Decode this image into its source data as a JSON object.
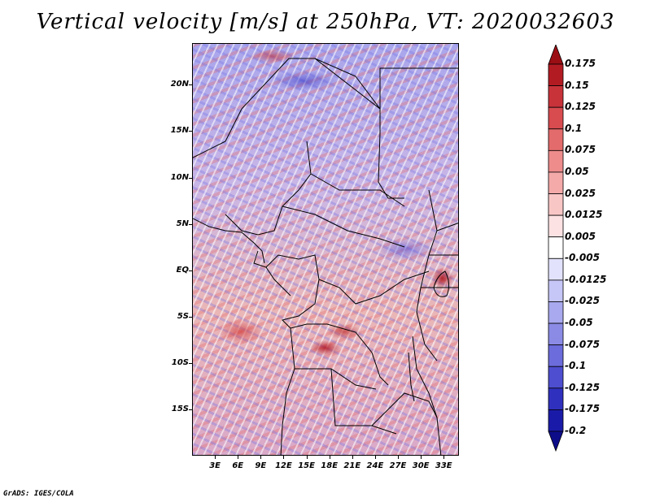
{
  "title": "Vertical velocity [m/s] at 250hPa, VT: 2020032603",
  "credit": "GrADS: IGES/COLA",
  "map": {
    "lat_labels": [
      "20N",
      "15N",
      "10N",
      "5N",
      "EQ",
      "5S",
      "10S",
      "15S"
    ],
    "lon_labels": [
      "3E",
      "6E",
      "9E",
      "12E",
      "15E",
      "18E",
      "21E",
      "24E",
      "27E",
      "30E",
      "33E"
    ],
    "lat_values": [
      20,
      15,
      10,
      5,
      0,
      -5,
      -10,
      -15
    ],
    "lon_values": [
      3,
      6,
      9,
      12,
      15,
      18,
      21,
      24,
      27,
      30,
      33
    ],
    "lat_range": [
      -20,
      24.5
    ],
    "lon_range": [
      0,
      35
    ]
  },
  "colorbar": {
    "labels": [
      "0.175",
      "0.15",
      "0.125",
      "0.1",
      "0.075",
      "0.05",
      "0.025",
      "0.0125",
      "0.005",
      "-0.005",
      "-0.0125",
      "-0.025",
      "-0.05",
      "-0.075",
      "-0.1",
      "-0.125",
      "-0.175",
      "-0.2"
    ],
    "colors": [
      "#9b0e14",
      "#b31b23",
      "#c8333a",
      "#d84b4f",
      "#e36b6b",
      "#ee8c8c",
      "#f5aaaa",
      "#f9c6c6",
      "#fce2e2",
      "#ffffff",
      "#e2e2fc",
      "#c6c6f7",
      "#a9a9ef",
      "#8b8be6",
      "#6c6cdc",
      "#4e4ed0",
      "#3030bf",
      "#1a1aa8",
      "#0d0d8a"
    ]
  }
}
